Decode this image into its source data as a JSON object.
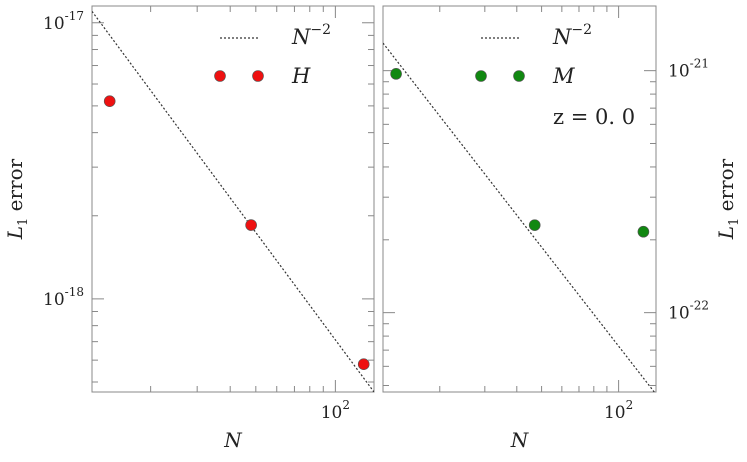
{
  "chart_data": [
    {
      "type": "scatter",
      "xscale": "log",
      "yscale": "log",
      "xlim": [
        12,
        140
      ],
      "ylim": [
        4.6e-19,
        1.15e-17
      ],
      "xlabel_base": "N",
      "ylabel_base": "L",
      "ylabel_sub": "1",
      "ylabel_rest": " error",
      "yaxis_side": "left",
      "x_ticks": [
        {
          "base": "10",
          "exp": "2",
          "value": 100
        }
      ],
      "y_ticks": [
        {
          "base": "10",
          "exp": "-17",
          "value": 1e-17
        },
        {
          "base": "10",
          "exp": "-18",
          "value": 1e-18
        }
      ],
      "reference_line": {
        "legend_base": "N",
        "legend_exp": "−2",
        "slope": -2,
        "x": [
          12,
          140
        ],
        "y": [
          1.1e-17,
          4.6e-19
        ]
      },
      "series": [
        {
          "name": "H",
          "color": "#ee1111",
          "x": [
            14,
            48,
            128
          ],
          "y": [
            5.2e-18,
            1.85e-18,
            5.8e-19
          ]
        }
      ],
      "legend_position": "top-right"
    },
    {
      "type": "scatter",
      "xscale": "log",
      "yscale": "log",
      "xlim": [
        12,
        140
      ],
      "ylim": [
        4.7e-23,
        1.85e-21
      ],
      "xlabel_base": "N",
      "ylabel_base": "L",
      "ylabel_sub": "1",
      "ylabel_rest": " error",
      "yaxis_side": "right",
      "x_ticks": [
        {
          "base": "10",
          "exp": "2",
          "value": 100
        }
      ],
      "y_ticks": [
        {
          "base": "10",
          "exp": "-21",
          "value": 1e-21
        },
        {
          "base": "10",
          "exp": "-22",
          "value": 1e-22
        }
      ],
      "reference_line": {
        "legend_base": "N",
        "legend_exp": "−2",
        "slope": -2,
        "x": [
          12,
          140
        ],
        "y": [
          1.3e-21,
          4.6e-23
        ]
      },
      "series": [
        {
          "name": "M",
          "color": "#118811",
          "x": [
            13.5,
            47,
            125
          ],
          "y": [
            9.7e-22,
            2.3e-22,
            2.16e-22
          ]
        }
      ],
      "annotation": "z = 0. 0",
      "legend_position": "top-right"
    }
  ]
}
